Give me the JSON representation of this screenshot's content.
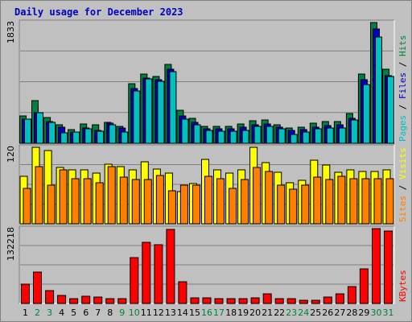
{
  "chart_data": {
    "type": "bar",
    "title": "Daily usage for December 2023",
    "categories": [
      "1",
      "2",
      "3",
      "4",
      "5",
      "6",
      "7",
      "8",
      "9",
      "10",
      "11",
      "12",
      "13",
      "14",
      "15",
      "16",
      "17",
      "18",
      "19",
      "20",
      "21",
      "22",
      "23",
      "24",
      "25",
      "26",
      "27",
      "28",
      "29",
      "30",
      "31"
    ],
    "weekend_days": [
      "2",
      "3",
      "9",
      "10",
      "16",
      "17",
      "23",
      "24",
      "30",
      "31"
    ],
    "colors": {
      "weekday_label": "#000000",
      "weekend_label": "#008040",
      "pages": "#00c0c0",
      "files": "#0000c0",
      "hits": "#008040",
      "sites": "#ff8000",
      "visits": "#ffff00",
      "kbytes": "#ff0000"
    },
    "panels": [
      {
        "ymax_label": "1833",
        "ymax": 1833,
        "legend": [
          "Pages",
          "Files",
          "Hits"
        ],
        "series": [
          {
            "name": "Hits",
            "color": "#008040",
            "values": [
              420,
              650,
              390,
              280,
              210,
              290,
              280,
              320,
              260,
              910,
              1050,
              1010,
              1200,
              500,
              380,
              260,
              260,
              260,
              290,
              340,
              350,
              280,
              230,
              240,
              300,
              330,
              330,
              450,
              1050,
              1830,
              1130
            ]
          },
          {
            "name": "Files",
            "color": "#0000c0",
            "values": [
              370,
              470,
              330,
              250,
              170,
              230,
              200,
              300,
              230,
              830,
              990,
              960,
              1120,
              420,
              320,
              220,
              220,
              220,
              250,
              280,
              290,
              240,
              190,
              210,
              250,
              270,
              280,
              380,
              960,
              1740,
              1030
            ]
          },
          {
            "name": "Pages",
            "color": "#00c0c0",
            "values": [
              370,
              470,
              320,
              160,
              170,
              220,
              180,
              280,
              170,
              800,
              980,
              940,
              1090,
              370,
              280,
              200,
              180,
              180,
              200,
              260,
              260,
              220,
              140,
              170,
              220,
              230,
              230,
              350,
              890,
              1610,
              1010
            ]
          }
        ]
      },
      {
        "ymax_label": "120",
        "ymax": 120,
        "legend": [
          "Sites",
          "Visits"
        ],
        "series": [
          {
            "name": "Visits",
            "color": "#ffff00",
            "values": [
              75,
              120,
              115,
              88,
              84,
              84,
              80,
              93,
              90,
              84,
              97,
              86,
              80,
              50,
              63,
              101,
              84,
              79,
              84,
              120,
              96,
              81,
              64,
              68,
              100,
              92,
              81,
              84,
              82,
              82,
              84
            ]
          },
          {
            "name": "Sites",
            "color": "#ff8000",
            "values": [
              55,
              90,
              60,
              85,
              71,
              71,
              65,
              90,
              73,
              70,
              70,
              76,
              52,
              60,
              60,
              75,
              71,
              55,
              70,
              88,
              82,
              61,
              54,
              60,
              73,
              70,
              75,
              71,
              71,
              71,
              71
            ]
          }
        ]
      },
      {
        "ymax_label": "132218",
        "ymax": 132218,
        "legend": [
          "KBytes"
        ],
        "series": [
          {
            "name": "KBytes",
            "color": "#ff0000",
            "values": [
              34000,
              55000,
              23000,
              14000,
              8000,
              13000,
              11000,
              9000,
              9000,
              81000,
              108000,
              104000,
              131000,
              38000,
              10000,
              10000,
              9000,
              9000,
              9000,
              10000,
              17000,
              9000,
              9000,
              5000,
              5000,
              12000,
              17000,
              30000,
              61000,
              132000,
              128000
            ]
          }
        ]
      }
    ]
  }
}
